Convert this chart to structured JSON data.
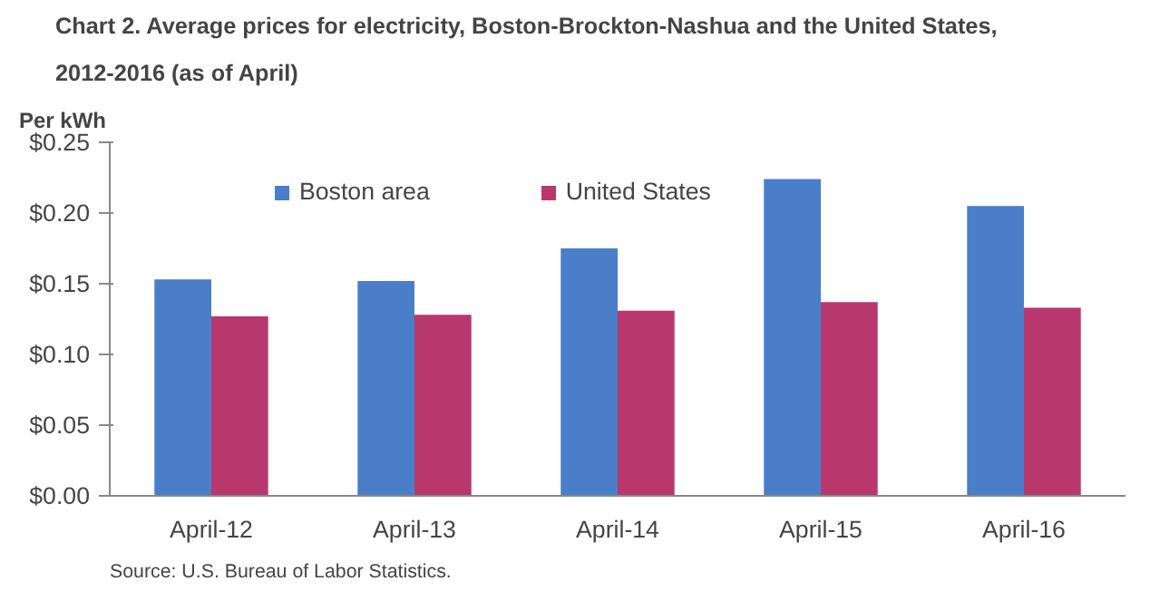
{
  "chart_data": {
    "type": "bar",
    "title": "Chart 2. Average prices for electricity, Boston-Brockton-Nashua  and the United  States,",
    "subtitle": "2012-2016 (as of April)",
    "ylabel": "Per kWh",
    "categories": [
      "April-12",
      "April-13",
      "April-14",
      "April-15",
      "April-16"
    ],
    "series": [
      {
        "name": "Boston area",
        "color": "#4a7ec8",
        "values": [
          0.153,
          0.152,
          0.175,
          0.224,
          0.205
        ]
      },
      {
        "name": "United States",
        "color": "#b8386e",
        "values": [
          0.127,
          0.128,
          0.131,
          0.137,
          0.133
        ]
      }
    ],
    "ylim": [
      0,
      0.25
    ],
    "yticks": [
      {
        "value": 0,
        "label": "$0.00"
      },
      {
        "value": 0.05,
        "label": "$0.05"
      },
      {
        "value": 0.1,
        "label": "$0.10"
      },
      {
        "value": 0.15,
        "label": "$0.15"
      },
      {
        "value": 0.2,
        "label": "$0.20"
      },
      {
        "value": 0.25,
        "label": "$0.25"
      }
    ],
    "grid": false,
    "legend": "top",
    "annotations": [
      "Source: U.S. Bureau of Labor Statistics."
    ]
  }
}
